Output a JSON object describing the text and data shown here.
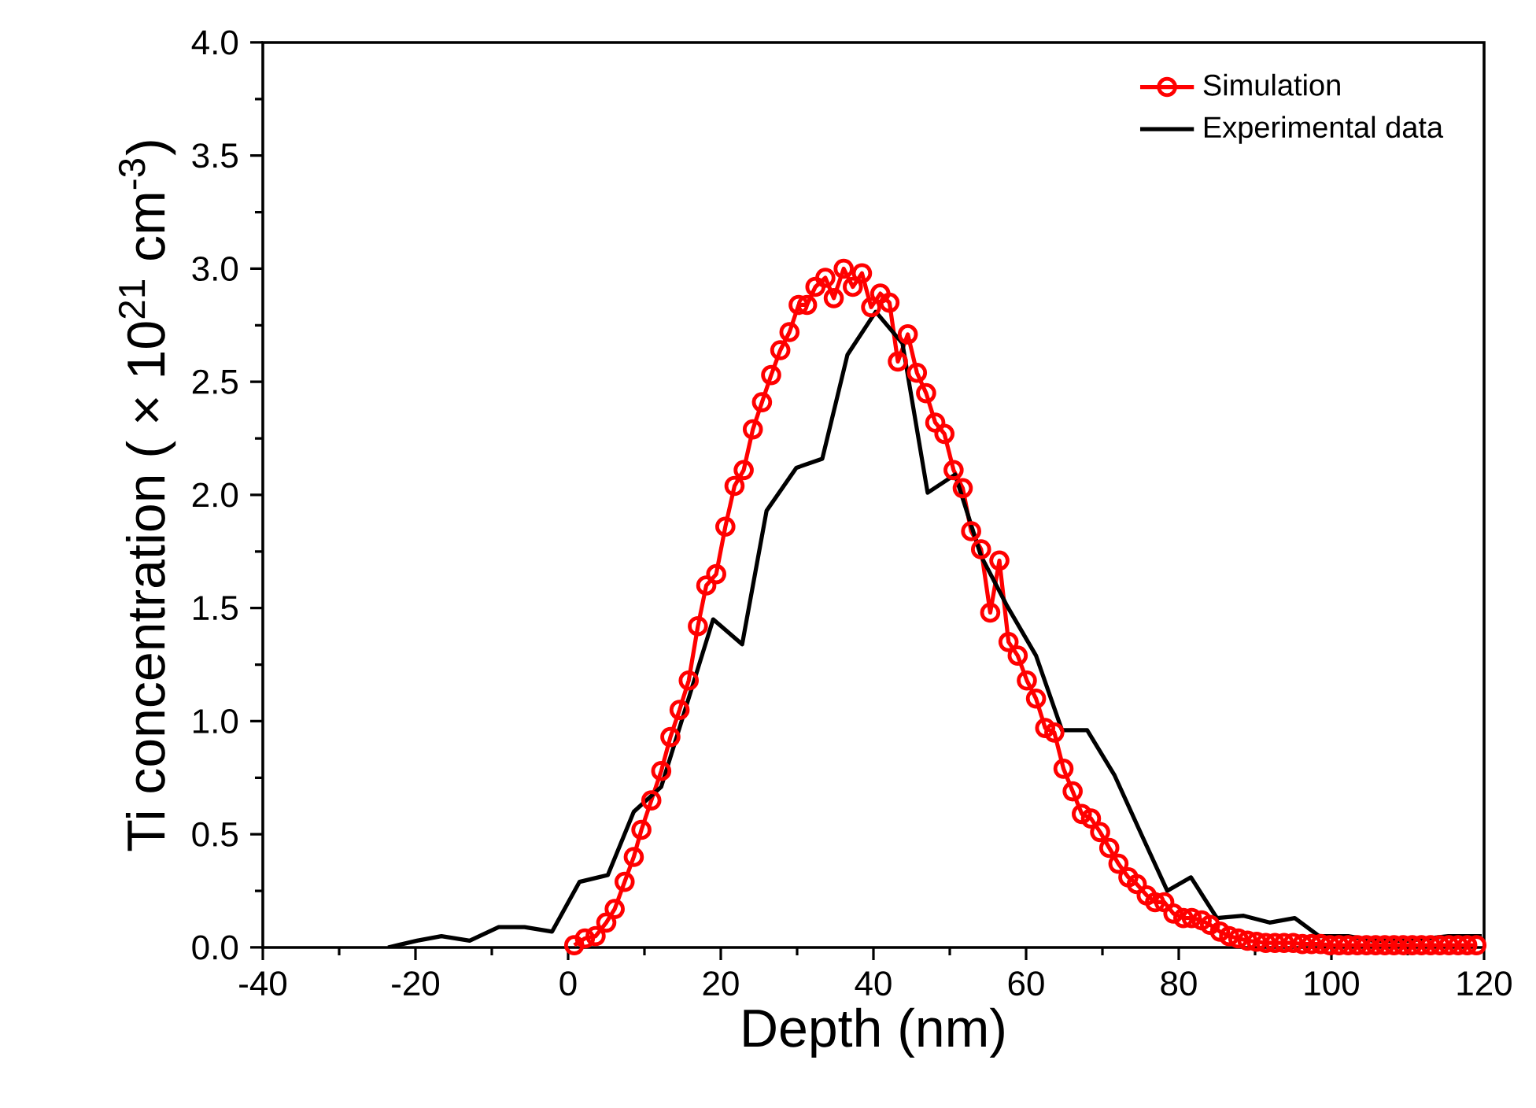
{
  "chart_data": {
    "type": "line",
    "xlabel": "Depth (nm)",
    "ylabel": "Ti concentration ( × 10$^{21}$ cm$^{-3}$)",
    "xlim": [
      -40,
      120
    ],
    "ylim": [
      0,
      4
    ],
    "xticks": [
      -40,
      -20,
      0,
      20,
      40,
      60,
      80,
      100,
      120
    ],
    "yticks": [
      {
        "value": 0,
        "label": "0.0"
      },
      {
        "value": 0.5,
        "label": "0.5"
      },
      {
        "value": 1,
        "label": "1.0"
      },
      {
        "value": 1.5,
        "label": "1.5"
      },
      {
        "value": 2,
        "label": "2.0"
      },
      {
        "value": 2.5,
        "label": "2.5"
      },
      {
        "value": 3,
        "label": "3.0"
      },
      {
        "value": 3.5,
        "label": "3.5"
      },
      {
        "value": 4,
        "label": "4.0"
      }
    ],
    "legend": "top right",
    "grid": false,
    "series": [
      {
        "name": "Simulation",
        "color": "#ff0000",
        "marker": "circle",
        "line_style": "solid",
        "x": [
          0.8,
          2.2,
          3.6,
          5.0,
          6.1,
          7.4,
          8.6,
          9.6,
          10.9,
          12.2,
          13.4,
          14.6,
          15.8,
          17.0,
          18.1,
          19.4,
          20.6,
          21.8,
          23.0,
          24.2,
          25.4,
          26.6,
          27.8,
          29.0,
          30.2,
          31.3,
          32.4,
          33.7,
          34.8,
          36.1,
          37.3,
          38.5,
          39.7,
          40.9,
          42.1,
          43.2,
          44.5,
          45.7,
          46.9,
          48.1,
          49.3,
          50.5,
          51.7,
          52.8,
          54.1,
          55.3,
          56.5,
          57.7,
          58.9,
          60.1,
          61.3,
          62.5,
          63.7,
          64.9,
          66.1,
          67.3,
          68.5,
          69.7,
          70.9,
          72.1,
          73.4,
          74.5,
          75.8,
          76.9,
          78.1,
          79.3,
          80.6,
          81.7,
          83.0,
          84.1,
          85.4,
          86.6,
          87.8,
          89.0,
          90.2,
          91.4,
          92.6,
          93.8,
          95.0,
          96.2,
          97.4,
          98.6,
          99.8,
          101.0,
          102.2,
          103.4,
          104.6,
          105.8,
          107.0,
          108.2,
          109.4,
          110.6,
          111.8,
          113.0,
          114.2,
          115.4,
          116.6,
          117.8,
          119.0
        ],
        "values": [
          0.01,
          0.04,
          0.05,
          0.11,
          0.17,
          0.29,
          0.4,
          0.52,
          0.65,
          0.78,
          0.93,
          1.05,
          1.18,
          1.42,
          1.6,
          1.65,
          1.86,
          2.04,
          2.11,
          2.29,
          2.41,
          2.53,
          2.64,
          2.72,
          2.84,
          2.84,
          2.92,
          2.96,
          2.87,
          3.0,
          2.92,
          2.98,
          2.83,
          2.89,
          2.85,
          2.59,
          2.71,
          2.54,
          2.45,
          2.32,
          2.27,
          2.11,
          2.03,
          1.84,
          1.76,
          1.48,
          1.71,
          1.35,
          1.29,
          1.18,
          1.1,
          0.97,
          0.95,
          0.79,
          0.69,
          0.59,
          0.57,
          0.51,
          0.44,
          0.37,
          0.31,
          0.28,
          0.23,
          0.2,
          0.2,
          0.15,
          0.13,
          0.13,
          0.12,
          0.1,
          0.07,
          0.05,
          0.04,
          0.03,
          0.025,
          0.02,
          0.02,
          0.02,
          0.02,
          0.015,
          0.015,
          0.015,
          0.01,
          0.01,
          0.01,
          0.01,
          0.01,
          0.01,
          0.01,
          0.01,
          0.01,
          0.01,
          0.01,
          0.01,
          0.01,
          0.01,
          0.01,
          0.01,
          0.01
        ]
      },
      {
        "name": "Experimental data",
        "color": "#000000",
        "marker": "none",
        "line_style": "solid",
        "x": [
          -23.6,
          -19.8,
          -16.6,
          -12.9,
          -9.1,
          -5.7,
          -2.1,
          1.5,
          5.2,
          8.6,
          12.2,
          19.0,
          22.8,
          26.0,
          29.9,
          33.3,
          36.6,
          40.3,
          43.8,
          47.1,
          50.7,
          54.1,
          57.5,
          61.3,
          64.7,
          68.0,
          71.6,
          75.1,
          78.5,
          81.6,
          85.0,
          88.5,
          91.9,
          95.2,
          98.4,
          102.2,
          105.5,
          110.0,
          115.3,
          119.7
        ],
        "values": [
          0,
          0.03,
          0.05,
          0.03,
          0.09,
          0.09,
          0.07,
          0.29,
          0.32,
          0.6,
          0.71,
          1.45,
          1.34,
          1.93,
          2.12,
          2.16,
          2.62,
          2.81,
          2.67,
          2.01,
          2.09,
          1.73,
          1.51,
          1.29,
          0.96,
          0.96,
          0.76,
          0.5,
          0.25,
          0.31,
          0.13,
          0.14,
          0.11,
          0.13,
          0.05,
          0.05,
          0.03,
          0.03,
          0.05,
          0.05
        ]
      }
    ]
  }
}
